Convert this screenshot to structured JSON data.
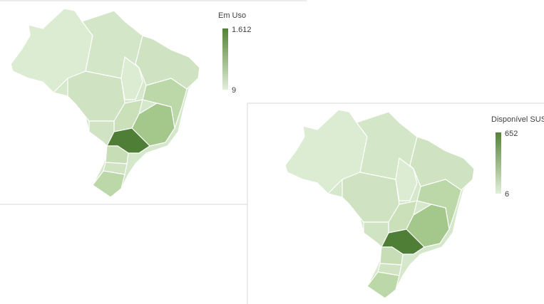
{
  "maps": [
    {
      "legend": {
        "title": "Em Uso",
        "max": {
          "value": 1612,
          "label": "1.612"
        },
        "min": 9
      }
    },
    {
      "legend": {
        "title": "Disponível SUS",
        "max": 652,
        "min": 6
      }
    }
  ]
}
